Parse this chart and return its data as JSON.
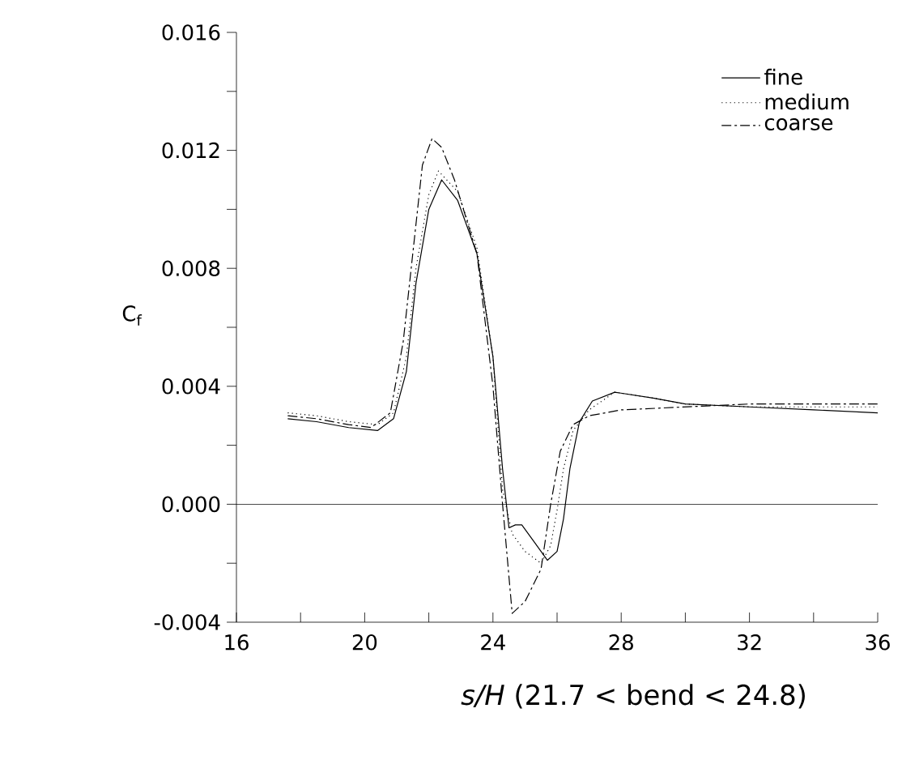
{
  "chart_data": {
    "type": "line",
    "xlabel": "*s/H* (21.7 < bend < 24.8)",
    "ylabel": "C$_{f}$",
    "xlim": [
      16,
      36
    ],
    "ylim": [
      -0.004,
      0.016
    ],
    "xticks": [
      16,
      {
        "value": 18,
        "label": null
      },
      20,
      {
        "value": 22,
        "label": null
      },
      24,
      {
        "value": 26,
        "label": null
      },
      28,
      {
        "value": 30,
        "label": null
      },
      32,
      {
        "value": 34,
        "label": null
      },
      36
    ],
    "yticks": [
      {
        "value": -0.004,
        "label": "-0.004"
      },
      {
        "value": -0.002,
        "label": null
      },
      {
        "value": 0,
        "label": "0.000"
      },
      {
        "value": 0.002,
        "label": null
      },
      {
        "value": 0.004,
        "label": "0.004"
      },
      {
        "value": 0.006,
        "label": null
      },
      {
        "value": 0.008,
        "label": "0.008"
      },
      {
        "value": 0.01,
        "label": null
      },
      {
        "value": 0.012,
        "label": "0.012"
      },
      {
        "value": 0.014,
        "label": null
      },
      {
        "value": 0.016,
        "label": "0.016"
      }
    ],
    "legend": "top right",
    "ref_lines": [
      {
        "axis": "y",
        "value": 0,
        "color": "#000000"
      }
    ],
    "series": [
      {
        "name": "fine",
        "color": "#000000",
        "line_style": "solid",
        "x": [
          17.6,
          18.5,
          19.5,
          20.4,
          20.9,
          21.3,
          21.6,
          22.0,
          22.4,
          22.9,
          23.5,
          24.0,
          24.3,
          24.5,
          24.7,
          24.9,
          25.3,
          25.7,
          26.0,
          26.2,
          26.4,
          26.7,
          27.1,
          27.8,
          29,
          30,
          32,
          34,
          36
        ],
        "values": [
          0.0029,
          0.0028,
          0.0026,
          0.0025,
          0.0029,
          0.0045,
          0.0075,
          0.01,
          0.011,
          0.0103,
          0.0085,
          0.005,
          0.0012,
          -0.0008,
          -0.0007,
          -0.0007,
          -0.0013,
          -0.0019,
          -0.0016,
          -0.0005,
          0.0012,
          0.0028,
          0.0035,
          0.0038,
          0.0036,
          0.0034,
          0.0033,
          0.0032,
          0.0031
        ]
      },
      {
        "name": "medium",
        "color": "#000000",
        "line_style": "dotted",
        "x": [
          17.6,
          18.5,
          19.5,
          20.4,
          20.9,
          21.3,
          21.6,
          22.0,
          22.3,
          22.9,
          23.5,
          24.0,
          24.3,
          24.6,
          25.0,
          25.5,
          25.8,
          26.0,
          26.2,
          26.5,
          27.0,
          27.8,
          29,
          30,
          32,
          34,
          36
        ],
        "values": [
          0.0031,
          0.003,
          0.0028,
          0.0027,
          0.0031,
          0.005,
          0.008,
          0.0105,
          0.0113,
          0.0106,
          0.0087,
          0.005,
          0.0005,
          -0.001,
          -0.0016,
          -0.002,
          -0.0014,
          -0.0002,
          0.0012,
          0.0025,
          0.0032,
          0.0038,
          0.0036,
          0.0034,
          0.0033,
          0.0033,
          0.0033
        ]
      },
      {
        "name": "coarse",
        "color": "#000000",
        "line_style": "dashdot",
        "x": [
          17.6,
          18.5,
          19.5,
          20.2,
          20.8,
          21.2,
          21.5,
          21.8,
          22.1,
          22.4,
          22.8,
          23.5,
          24.0,
          24.3,
          24.6,
          25.0,
          25.5,
          25.8,
          26.1,
          26.5,
          27.0,
          28,
          30,
          32,
          34,
          36
        ],
        "values": [
          0.003,
          0.0029,
          0.0027,
          0.0026,
          0.0031,
          0.0055,
          0.0085,
          0.0115,
          0.0124,
          0.0121,
          0.011,
          0.0085,
          0.004,
          0.0,
          -0.0037,
          -0.0033,
          -0.0022,
          0.0,
          0.0018,
          0.0027,
          0.003,
          0.0032,
          0.0033,
          0.0034,
          0.0034,
          0.0034
        ]
      }
    ]
  }
}
